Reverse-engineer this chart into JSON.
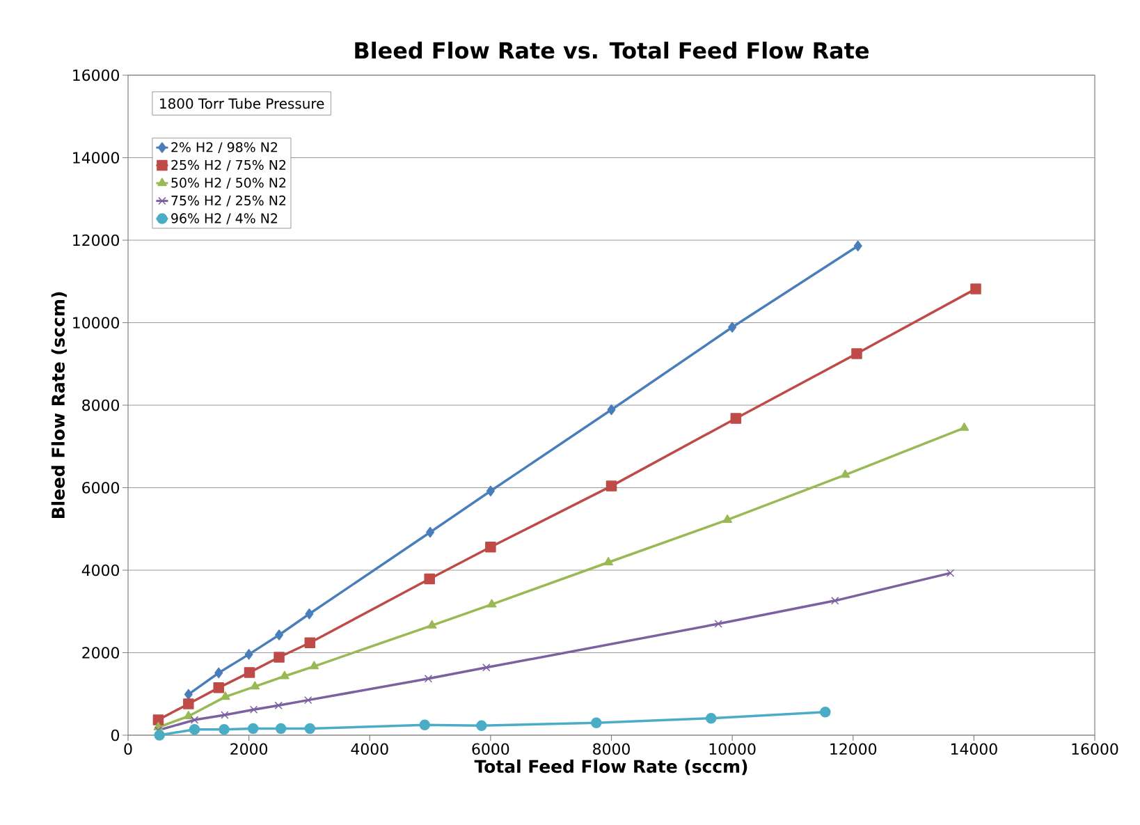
{
  "chart_data": {
    "type": "line",
    "title": "Bleed Flow Rate vs. Total Feed Flow Rate",
    "xlabel": "Total Feed Flow Rate (sccm)",
    "ylabel": "Bleed Flow Rate (sccm)",
    "legend_title": "1800 Torr Tube Pressure",
    "legend": "top left",
    "grid": "y",
    "xlim": [
      0,
      16000
    ],
    "ylim": [
      0,
      16000
    ],
    "xticks": [
      0,
      2000,
      4000,
      6000,
      8000,
      10000,
      12000,
      14000,
      16000
    ],
    "yticks": [
      0,
      2000,
      4000,
      6000,
      8000,
      10000,
      12000,
      14000,
      16000
    ],
    "series": [
      {
        "name": "2% H2 / 98% N2",
        "color": "#4a7ebb",
        "marker": "diamond",
        "x": [
          1000,
          1500,
          2000,
          2500,
          3000,
          5000,
          6000,
          8000,
          10000,
          12080
        ],
        "values": [
          990,
          1510,
          1960,
          2430,
          2940,
          4920,
          5920,
          7890,
          9890,
          11860
        ]
      },
      {
        "name": "25% H2 / 75% N2",
        "color": "#be4b48",
        "marker": "square",
        "x": [
          500,
          1000,
          1500,
          2010,
          2500,
          3010,
          4990,
          6000,
          8000,
          10060,
          12060,
          14030
        ],
        "values": [
          370,
          760,
          1150,
          1520,
          1890,
          2240,
          3790,
          4560,
          6040,
          7680,
          9250,
          10820
        ]
      },
      {
        "name": "50% H2 / 50% N2",
        "color": "#98b954",
        "marker": "triangle",
        "x": [
          500,
          1000,
          1610,
          2100,
          2590,
          3080,
          5030,
          6020,
          7950,
          9920,
          11870,
          13840
        ],
        "values": [
          190,
          460,
          930,
          1180,
          1430,
          1670,
          2660,
          3170,
          4190,
          5220,
          6310,
          7450
        ]
      },
      {
        "name": "75% H2 / 25% N2",
        "color": "#7d60a0",
        "marker": "cross",
        "x": [
          500,
          1100,
          1600,
          2080,
          2490,
          2980,
          4970,
          5930,
          9770,
          11700,
          13610
        ],
        "values": [
          120,
          370,
          490,
          620,
          720,
          850,
          1370,
          1640,
          2700,
          3260,
          3930
        ]
      },
      {
        "name": "96% H2 / 4% N2",
        "color": "#4bacc6",
        "marker": "circle",
        "x": [
          520,
          1100,
          1590,
          2070,
          2530,
          3010,
          4910,
          5850,
          7750,
          9650,
          11540
        ],
        "values": [
          0,
          140,
          140,
          160,
          160,
          160,
          250,
          230,
          300,
          410,
          560
        ]
      }
    ]
  }
}
